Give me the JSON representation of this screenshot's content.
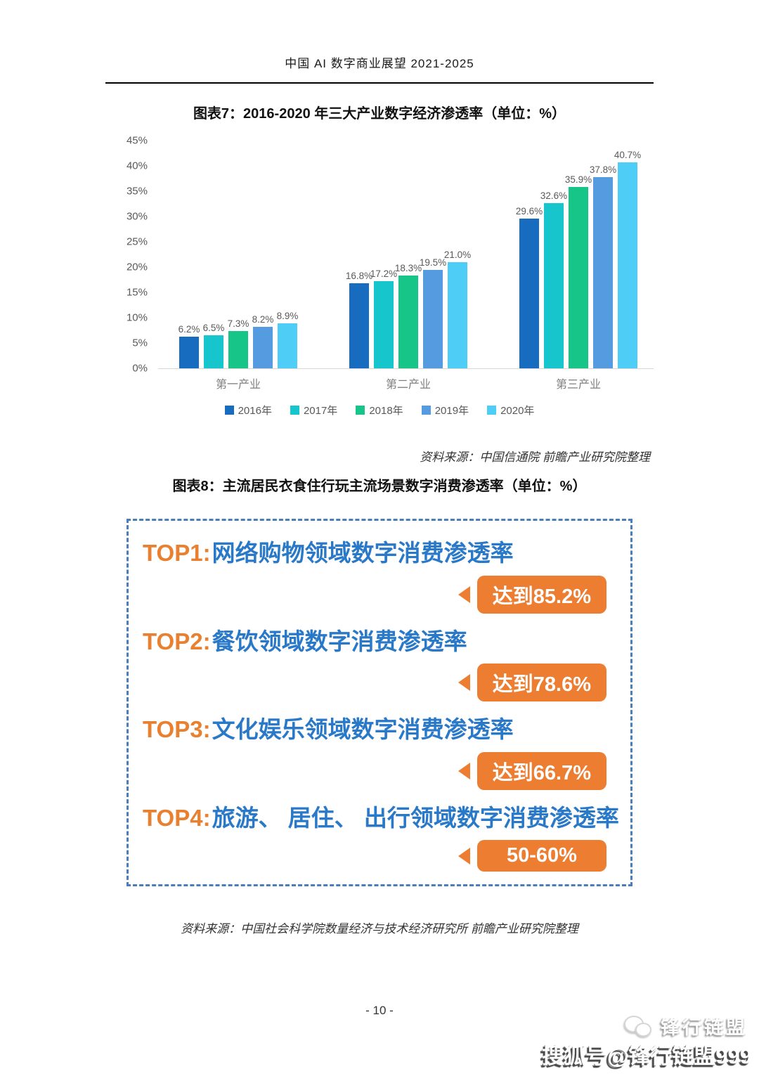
{
  "page": {
    "header_title": "中国 AI 数字商业展望 2021-2025",
    "page_number": "- 10 -"
  },
  "chart_data": {
    "type": "bar",
    "title": "图表7：2016-2020 年三大产业数字经济渗透率（单位：%）",
    "categories": [
      "第一产业",
      "第二产业",
      "第三产业"
    ],
    "series": [
      {
        "name": "2016年",
        "color": "#176cc0",
        "values": [
          6.2,
          16.8,
          29.6
        ],
        "labels": [
          "6.2%",
          "16.8%",
          "29.6%"
        ]
      },
      {
        "name": "2017年",
        "color": "#17c5cd",
        "values": [
          6.5,
          17.2,
          32.6
        ],
        "labels": [
          "6.5%",
          "17.2%",
          "32.6%"
        ]
      },
      {
        "name": "2018年",
        "color": "#17c588",
        "values": [
          7.3,
          18.3,
          35.9
        ],
        "labels": [
          "7.3%",
          "18.3%",
          "35.9%"
        ]
      },
      {
        "name": "2019年",
        "color": "#559be0",
        "values": [
          8.2,
          19.5,
          37.8
        ],
        "labels": [
          "8.2%",
          "19.5%",
          "37.8%"
        ]
      },
      {
        "name": "2020年",
        "color": "#4ecdf7",
        "values": [
          8.9,
          21.0,
          40.7
        ],
        "labels": [
          "8.9%",
          "21.0%",
          "40.7%"
        ]
      }
    ],
    "y_axis": {
      "min": 0,
      "max": 45,
      "step": 5,
      "unit": "%",
      "tick_labels": [
        "45%",
        "40%",
        "35%",
        "30%",
        "25%",
        "20%",
        "15%",
        "10%",
        "5%",
        "0%"
      ]
    },
    "grid": false,
    "legend_position": "bottom",
    "axis_line_color": "#d6d6d6",
    "source": "资料来源：中国信通院 前瞻产业研究院整理"
  },
  "figure8": {
    "title": "图表8：主流居民衣食住行玩主流场景数字消费渗透率（单位：%）",
    "items": [
      {
        "rank": "TOP1:",
        "label": "网络购物领域数字消费渗透率",
        "badge": "达到85.2%"
      },
      {
        "rank": "TOP2:",
        "label": "餐饮领域数字消费渗透率",
        "badge": "达到78.6%"
      },
      {
        "rank": "TOP3:",
        "label": "文化娱乐领域数字消费渗透率",
        "badge": "达到66.7%"
      },
      {
        "rank": "TOP4:",
        "label": "旅游、 居住、 出行领域数字消费渗透率",
        "badge": "50-60%"
      }
    ],
    "rank_color": "#e8802f",
    "label_color": "#2979c8",
    "badge_color": "#ed7d31",
    "border_color": "#4a7ebb",
    "source": "资料来源：中国社会科学院数量经济与技术经济研究所 前瞻产业研究院整理"
  },
  "watermark": {
    "logo_text": "锋行链盟",
    "account_text": "搜狐号@锋行链盟999"
  }
}
